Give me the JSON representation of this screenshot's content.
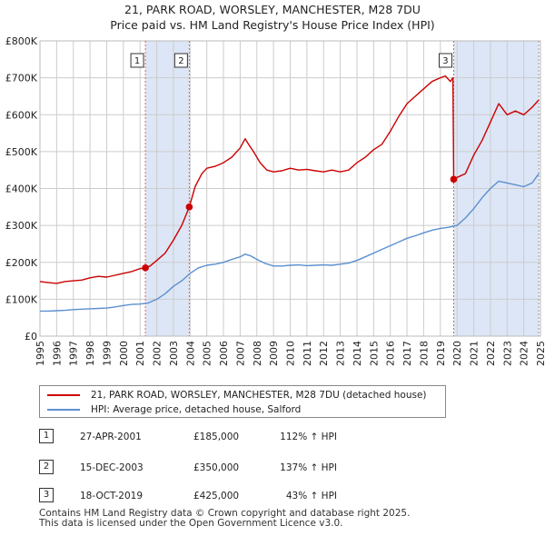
{
  "title_line1": "21, PARK ROAD, WORSLEY, MANCHESTER, M28 7DU",
  "title_line2": "Price paid vs. HM Land Registry's House Price Index (HPI)",
  "colors": {
    "property": "#cc0000",
    "hpi": "#5b8fd0",
    "shade": "#dde6f6",
    "grid": "#cccccc",
    "vline": "#e06060"
  },
  "legend": {
    "property_label": "21, PARK ROAD, WORSLEY, MANCHESTER, M28 7DU (detached house)",
    "hpi_label": "HPI: Average price, detached house, Salford"
  },
  "sales": [
    {
      "num": "1",
      "date": "27-APR-2001",
      "price": "£185,000",
      "hpi": "112% ↑ HPI"
    },
    {
      "num": "2",
      "date": "15-DEC-2003",
      "price": "£350,000",
      "hpi": "137% ↑ HPI"
    },
    {
      "num": "3",
      "date": "18-OCT-2019",
      "price": "£425,000",
      "hpi": "43% ↑ HPI"
    }
  ],
  "footer_line1": "Contains HM Land Registry data © Crown copyright and database right 2025.",
  "footer_line2": "This data is licensed under the Open Government Licence v3.0.",
  "chart_data": {
    "type": "line",
    "title": "21, PARK ROAD, WORSLEY, MANCHESTER, M28 7DU — Price paid vs. HM Land Registry's House Price Index (HPI)",
    "xlim": [
      1995,
      2025
    ],
    "ylim": [
      0,
      800000
    ],
    "x_ticks": [
      1995,
      1996,
      1997,
      1998,
      1999,
      2000,
      2001,
      2002,
      2003,
      2004,
      2005,
      2006,
      2007,
      2008,
      2009,
      2010,
      2011,
      2012,
      2013,
      2014,
      2015,
      2016,
      2017,
      2018,
      2019,
      2020,
      2021,
      2022,
      2023,
      2024,
      2025
    ],
    "y_ticks": [
      {
        "value": 0,
        "label": "£0"
      },
      {
        "value": 100000,
        "label": "£100K"
      },
      {
        "value": 200000,
        "label": "£200K"
      },
      {
        "value": 300000,
        "label": "£300K"
      },
      {
        "value": 400000,
        "label": "£400K"
      },
      {
        "value": 500000,
        "label": "£500K"
      },
      {
        "value": 600000,
        "label": "£600K"
      },
      {
        "value": 700000,
        "label": "£700K"
      },
      {
        "value": 800000,
        "label": "£800K"
      }
    ],
    "grid": true,
    "shaded_ranges": [
      [
        2001.32,
        2003.95
      ],
      [
        2019.8,
        2024.9
      ]
    ],
    "sale_markers": [
      {
        "label": "1",
        "x": 2001.32,
        "y": 185000
      },
      {
        "label": "2",
        "x": 2003.95,
        "y": 350000
      },
      {
        "label": "3",
        "x": 2019.8,
        "y": 425000
      }
    ],
    "series": [
      {
        "name": "21, PARK ROAD, WORSLEY, MANCHESTER, M28 7DU (detached house)",
        "x": [
          1995,
          1995.5,
          1996,
          1996.5,
          1997,
          1997.5,
          1998,
          1998.5,
          1999,
          1999.5,
          2000,
          2000.5,
          2001,
          2001.32,
          2001.32,
          2001.6,
          2002,
          2002.5,
          2003,
          2003.5,
          2003.95,
          2003.95,
          2004.3,
          2004.7,
          2005,
          2005.5,
          2006,
          2006.5,
          2007,
          2007.3,
          2007.5,
          2007.8,
          2008.2,
          2008.6,
          2009,
          2009.5,
          2010,
          2010.5,
          2011,
          2011.5,
          2012,
          2012.5,
          2013,
          2013.5,
          2014,
          2014.5,
          2015,
          2015.5,
          2016,
          2016.5,
          2017,
          2017.5,
          2018,
          2018.5,
          2019,
          2019.3,
          2019.6,
          2019.75,
          2019.8,
          2019.8,
          2020,
          2020.5,
          2021,
          2021.5,
          2022,
          2022.5,
          2023,
          2023.5,
          2024,
          2024.5,
          2024.9
        ],
        "values": [
          148000,
          145000,
          143000,
          148000,
          150000,
          152000,
          158000,
          162000,
          160000,
          165000,
          170000,
          175000,
          183000,
          185000,
          185000,
          190000,
          205000,
          225000,
          260000,
          300000,
          350000,
          350000,
          405000,
          440000,
          455000,
          460000,
          470000,
          485000,
          510000,
          535000,
          520000,
          500000,
          470000,
          450000,
          445000,
          448000,
          455000,
          450000,
          452000,
          448000,
          445000,
          450000,
          445000,
          450000,
          470000,
          485000,
          505000,
          520000,
          555000,
          595000,
          630000,
          650000,
          670000,
          690000,
          700000,
          705000,
          690000,
          700000,
          425000,
          425000,
          430000,
          440000,
          490000,
          530000,
          580000,
          630000,
          600000,
          610000,
          600000,
          620000,
          640000
        ]
      },
      {
        "name": "HPI: Average price, detached house, Salford",
        "x": [
          1995,
          1995.5,
          1996,
          1996.5,
          1997,
          1997.5,
          1998,
          1998.5,
          1999,
          1999.5,
          2000,
          2000.5,
          2001,
          2001.5,
          2002,
          2002.5,
          2003,
          2003.5,
          2004,
          2004.5,
          2005,
          2005.5,
          2006,
          2006.5,
          2007,
          2007.3,
          2007.6,
          2008,
          2008.5,
          2009,
          2009.5,
          2010,
          2010.5,
          2011,
          2011.5,
          2012,
          2012.5,
          2013,
          2013.5,
          2014,
          2014.5,
          2015,
          2015.5,
          2016,
          2016.5,
          2017,
          2017.5,
          2018,
          2018.5,
          2019,
          2019.5,
          2020,
          2020.5,
          2021,
          2021.5,
          2022,
          2022.5,
          2023,
          2023.5,
          2024,
          2024.5,
          2024.9
        ],
        "values": [
          68000,
          68000,
          69000,
          70000,
          72000,
          73000,
          74000,
          75000,
          76000,
          79000,
          83000,
          86000,
          87000,
          90000,
          100000,
          115000,
          135000,
          150000,
          170000,
          185000,
          192000,
          195000,
          200000,
          208000,
          215000,
          222000,
          218000,
          208000,
          197000,
          190000,
          190000,
          192000,
          193000,
          191000,
          192000,
          193000,
          192000,
          195000,
          198000,
          205000,
          215000,
          225000,
          235000,
          245000,
          255000,
          265000,
          272000,
          280000,
          287000,
          292000,
          295000,
          300000,
          320000,
          345000,
          375000,
          400000,
          420000,
          415000,
          410000,
          405000,
          415000,
          440000
        ]
      }
    ]
  }
}
